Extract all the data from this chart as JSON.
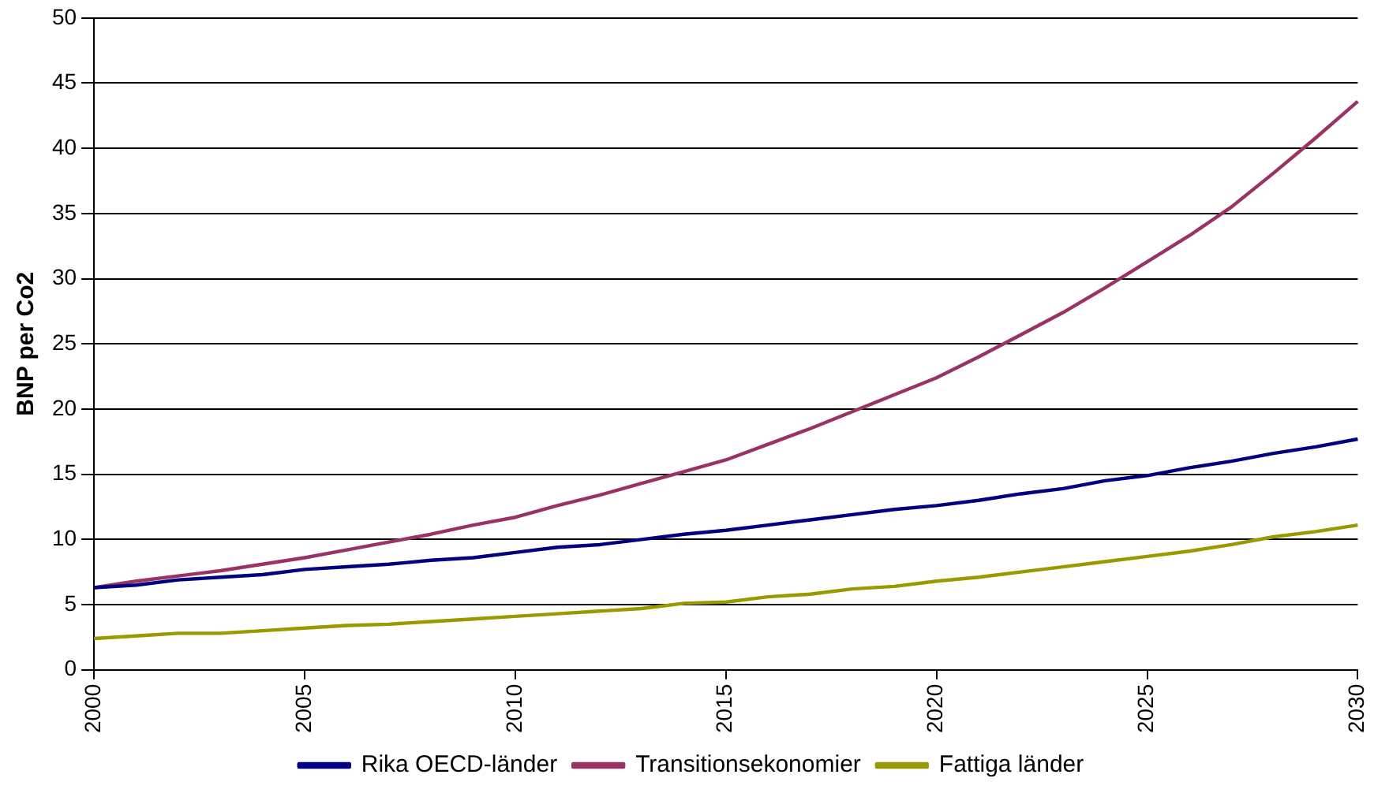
{
  "chart_data": {
    "type": "line",
    "ylabel": "BNP per Co2",
    "x": [
      2000,
      2001,
      2002,
      2003,
      2004,
      2005,
      2006,
      2007,
      2008,
      2009,
      2010,
      2011,
      2012,
      2013,
      2014,
      2015,
      2016,
      2017,
      2018,
      2019,
      2020,
      2021,
      2022,
      2023,
      2024,
      2025,
      2026,
      2027,
      2028,
      2029,
      2030
    ],
    "series": [
      {
        "name": "Rika OECD-länder",
        "color": "#000080",
        "values": [
          6.3,
          6.5,
          6.9,
          7.1,
          7.3,
          7.7,
          7.9,
          8.1,
          8.4,
          8.6,
          9.0,
          9.4,
          9.6,
          10.0,
          10.4,
          10.7,
          11.1,
          11.5,
          11.9,
          12.3,
          12.6,
          13.0,
          13.5,
          13.9,
          14.5,
          14.9,
          15.5,
          16.0,
          16.6,
          17.1,
          17.7
        ]
      },
      {
        "name": "Transitionsekonomier",
        "color": "#993366",
        "values": [
          6.3,
          6.8,
          7.2,
          7.6,
          8.1,
          8.6,
          9.2,
          9.8,
          10.4,
          11.1,
          11.7,
          12.6,
          13.4,
          14.3,
          15.2,
          16.1,
          17.3,
          18.5,
          19.8,
          21.1,
          22.4,
          24.0,
          25.7,
          27.4,
          29.3,
          31.3,
          33.3,
          35.5,
          38.1,
          40.8,
          43.6
        ]
      },
      {
        "name": "Fattiga länder",
        "color": "#999900",
        "values": [
          2.4,
          2.6,
          2.8,
          2.8,
          3.0,
          3.2,
          3.4,
          3.5,
          3.7,
          3.9,
          4.1,
          4.3,
          4.5,
          4.7,
          5.1,
          5.2,
          5.6,
          5.8,
          6.2,
          6.4,
          6.8,
          7.1,
          7.5,
          7.9,
          8.3,
          8.7,
          9.1,
          9.6,
          10.2,
          10.6,
          11.1
        ]
      }
    ],
    "xlim": [
      2000,
      2030
    ],
    "xticks": [
      2000,
      2005,
      2010,
      2015,
      2020,
      2025,
      2030
    ],
    "ylim": [
      0,
      50
    ],
    "yticks": [
      0,
      5,
      10,
      15,
      20,
      25,
      30,
      35,
      40,
      45,
      50
    ],
    "grid": "y",
    "legend": "bottom",
    "marker": "none",
    "line_style": "solid"
  }
}
